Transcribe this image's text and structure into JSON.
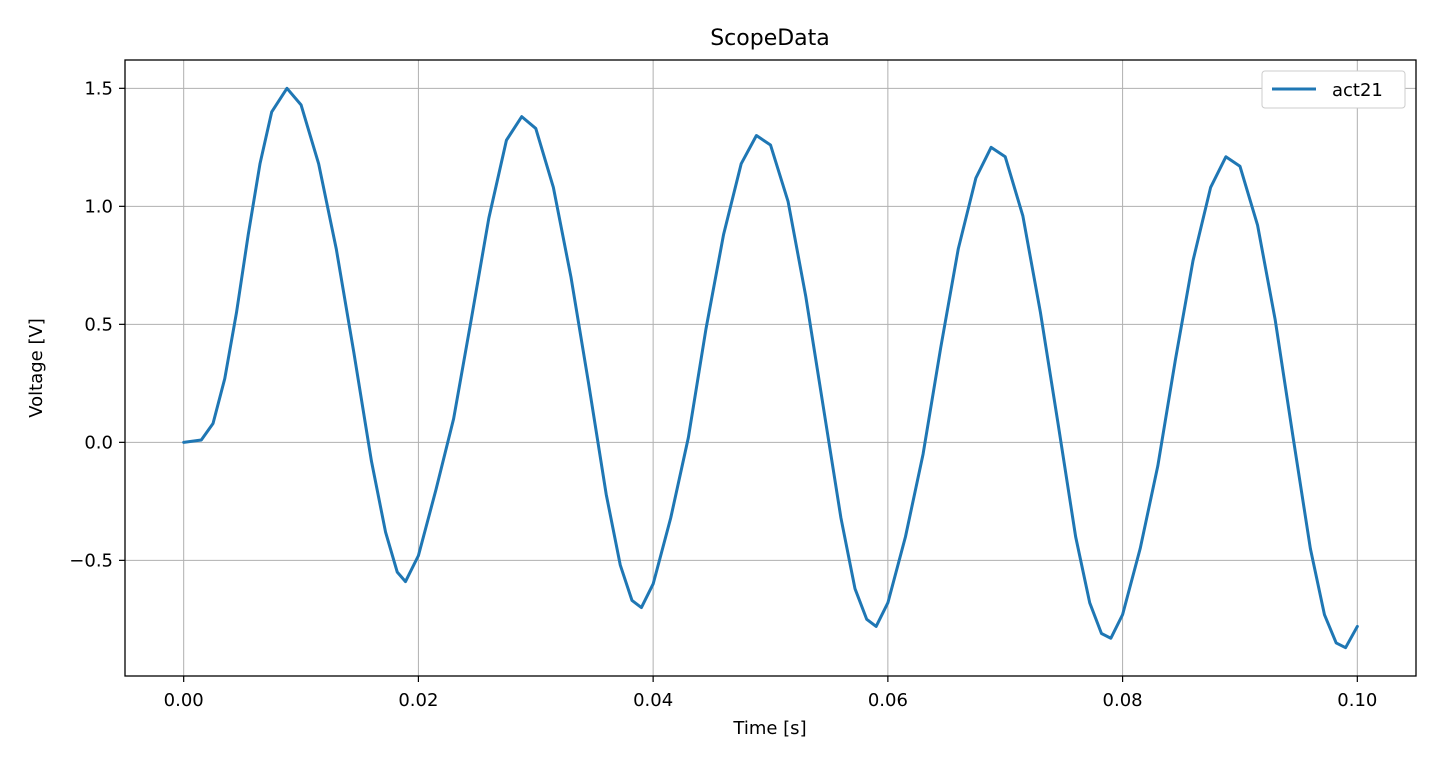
{
  "chart_data": {
    "type": "line",
    "title": "ScopeData",
    "xlabel": "Time [s]",
    "ylabel": "Voltage [V]",
    "xlim": [
      -0.005,
      0.105
    ],
    "ylim": [
      -0.99,
      1.62
    ],
    "grid": true,
    "legend_position": "top-right",
    "x_ticks": [
      0.0,
      0.02,
      0.04,
      0.06,
      0.08,
      0.1
    ],
    "x_tick_labels": [
      "0.00",
      "0.02",
      "0.04",
      "0.06",
      "0.08",
      "0.10"
    ],
    "y_ticks": [
      -0.5,
      0.0,
      0.5,
      1.0,
      1.5
    ],
    "y_tick_labels": [
      "−0.5",
      "0.0",
      "0.5",
      "1.0",
      "1.5"
    ],
    "series": [
      {
        "name": "act21",
        "color": "#1f77b4",
        "points": [
          [
            0.0,
            0.0
          ],
          [
            0.0015,
            0.01
          ],
          [
            0.0025,
            0.08
          ],
          [
            0.0035,
            0.27
          ],
          [
            0.0045,
            0.55
          ],
          [
            0.0055,
            0.88
          ],
          [
            0.0065,
            1.18
          ],
          [
            0.0075,
            1.4
          ],
          [
            0.0088,
            1.5
          ],
          [
            0.01,
            1.43
          ],
          [
            0.0115,
            1.18
          ],
          [
            0.013,
            0.82
          ],
          [
            0.0145,
            0.38
          ],
          [
            0.016,
            -0.08
          ],
          [
            0.0172,
            -0.38
          ],
          [
            0.0182,
            -0.55
          ],
          [
            0.0189,
            -0.59
          ],
          [
            0.02,
            -0.48
          ],
          [
            0.0215,
            -0.2
          ],
          [
            0.023,
            0.1
          ],
          [
            0.0245,
            0.52
          ],
          [
            0.026,
            0.95
          ],
          [
            0.0275,
            1.28
          ],
          [
            0.0288,
            1.38
          ],
          [
            0.03,
            1.33
          ],
          [
            0.0315,
            1.08
          ],
          [
            0.033,
            0.7
          ],
          [
            0.0345,
            0.25
          ],
          [
            0.036,
            -0.22
          ],
          [
            0.0372,
            -0.52
          ],
          [
            0.0382,
            -0.67
          ],
          [
            0.039,
            -0.7
          ],
          [
            0.04,
            -0.6
          ],
          [
            0.0415,
            -0.32
          ],
          [
            0.043,
            0.02
          ],
          [
            0.0445,
            0.48
          ],
          [
            0.046,
            0.88
          ],
          [
            0.0475,
            1.18
          ],
          [
            0.0488,
            1.3
          ],
          [
            0.05,
            1.26
          ],
          [
            0.0515,
            1.02
          ],
          [
            0.053,
            0.62
          ],
          [
            0.0545,
            0.15
          ],
          [
            0.056,
            -0.32
          ],
          [
            0.0572,
            -0.62
          ],
          [
            0.0582,
            -0.75
          ],
          [
            0.059,
            -0.78
          ],
          [
            0.06,
            -0.68
          ],
          [
            0.0615,
            -0.4
          ],
          [
            0.063,
            -0.05
          ],
          [
            0.0645,
            0.4
          ],
          [
            0.066,
            0.82
          ],
          [
            0.0675,
            1.12
          ],
          [
            0.0688,
            1.25
          ],
          [
            0.07,
            1.21
          ],
          [
            0.0715,
            0.96
          ],
          [
            0.073,
            0.55
          ],
          [
            0.0745,
            0.08
          ],
          [
            0.076,
            -0.4
          ],
          [
            0.0772,
            -0.68
          ],
          [
            0.0782,
            -0.81
          ],
          [
            0.079,
            -0.83
          ],
          [
            0.08,
            -0.73
          ],
          [
            0.0815,
            -0.45
          ],
          [
            0.083,
            -0.1
          ],
          [
            0.0845,
            0.35
          ],
          [
            0.086,
            0.77
          ],
          [
            0.0875,
            1.08
          ],
          [
            0.0888,
            1.21
          ],
          [
            0.09,
            1.17
          ],
          [
            0.0915,
            0.92
          ],
          [
            0.093,
            0.52
          ],
          [
            0.0945,
            0.03
          ],
          [
            0.096,
            -0.45
          ],
          [
            0.0972,
            -0.73
          ],
          [
            0.0982,
            -0.85
          ],
          [
            0.099,
            -0.87
          ],
          [
            0.1,
            -0.78
          ]
        ]
      }
    ]
  }
}
